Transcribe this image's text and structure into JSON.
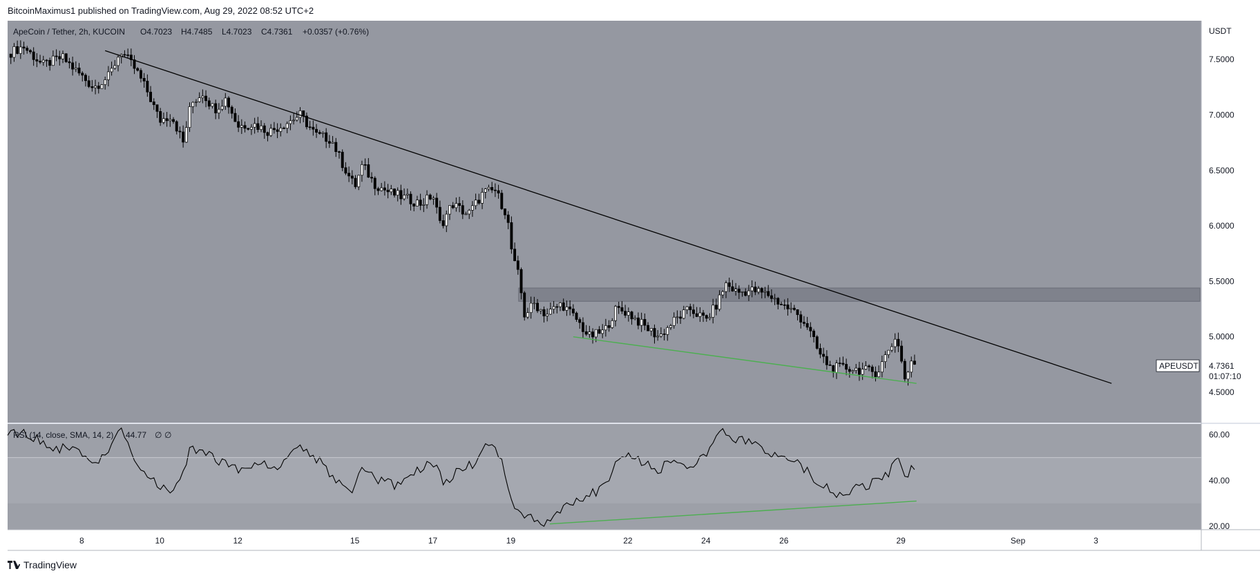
{
  "header": {
    "published": "BitcoinMaximus1 published on TradingView.com, Aug 29, 2022 08:52 UTC+2"
  },
  "footer": {
    "brand": "TradingView"
  },
  "colors": {
    "plot_bg": "#9598a1",
    "rsi_bg": "#9da0a8",
    "rsi_band": "#a5a8b0",
    "candle_up": "#ffffff",
    "candle_down": "#000000",
    "trendline": "#000000",
    "support_line": "#4caf50",
    "resistance_zone": "#787b86"
  },
  "chart_data": [
    {
      "type": "candlestick",
      "legend": {
        "symbol": "ApeCoin / Tether, 2h, KUCOIN",
        "open": "O4.7023",
        "high": "H4.7485",
        "low": "L4.7023",
        "close": "C4.7361",
        "change": "+0.0357 (+0.76%)"
      },
      "y_unit": "USDT",
      "y_ticks": [
        "7.5000",
        "7.0000",
        "6.5000",
        "6.0000",
        "5.5000",
        "5.0000",
        "4.5000"
      ],
      "ylim": [
        4.22,
        7.85
      ],
      "x_ticks": [
        "8",
        "10",
        "12",
        "15",
        "17",
        "19",
        "22",
        "24",
        "26",
        "29",
        "Sep",
        "3"
      ],
      "x_tick_days": [
        8,
        10,
        12,
        15,
        17,
        19,
        22,
        24,
        26,
        29,
        32,
        34
      ],
      "x_range_days": [
        6.1,
        36.7
      ],
      "last_price_label": {
        "symbol": "APEUSDT",
        "price": "4.7361",
        "countdown": "01:07:10"
      },
      "price_path": [
        [
          6.1,
          7.55
        ],
        [
          6.5,
          7.62
        ],
        [
          7.0,
          7.45
        ],
        [
          7.5,
          7.52
        ],
        [
          8.0,
          7.35
        ],
        [
          8.3,
          7.25
        ],
        [
          8.7,
          7.35
        ],
        [
          9.0,
          7.58
        ],
        [
          9.4,
          7.4
        ],
        [
          9.7,
          7.2
        ],
        [
          10.0,
          6.95
        ],
        [
          10.3,
          7.0
        ],
        [
          10.6,
          6.75
        ],
        [
          10.8,
          7.1
        ],
        [
          11.1,
          7.2
        ],
        [
          11.4,
          7.05
        ],
        [
          11.7,
          7.15
        ],
        [
          12.0,
          6.9
        ],
        [
          12.4,
          6.92
        ],
        [
          12.8,
          6.85
        ],
        [
          13.2,
          6.92
        ],
        [
          13.6,
          7.0
        ],
        [
          14.0,
          6.82
        ],
        [
          14.4,
          6.78
        ],
        [
          14.7,
          6.55
        ],
        [
          15.0,
          6.35
        ],
        [
          15.2,
          6.55
        ],
        [
          15.5,
          6.38
        ],
        [
          15.9,
          6.3
        ],
        [
          16.3,
          6.25
        ],
        [
          16.7,
          6.2
        ],
        [
          17.0,
          6.28
        ],
        [
          17.2,
          6.0
        ],
        [
          17.5,
          6.2
        ],
        [
          17.9,
          6.1
        ],
        [
          18.3,
          6.3
        ],
        [
          18.6,
          6.32
        ],
        [
          18.9,
          6.1
        ],
        [
          19.05,
          5.7
        ],
        [
          19.2,
          5.55
        ],
        [
          19.35,
          5.2
        ],
        [
          19.6,
          5.3
        ],
        [
          19.9,
          5.2
        ],
        [
          20.3,
          5.3
        ],
        [
          20.7,
          5.15
        ],
        [
          21.0,
          5.0
        ],
        [
          21.4,
          5.05
        ],
        [
          21.7,
          5.25
        ],
        [
          22.0,
          5.22
        ],
        [
          22.4,
          5.1
        ],
        [
          22.8,
          5.0
        ],
        [
          23.2,
          5.15
        ],
        [
          23.6,
          5.25
        ],
        [
          24.0,
          5.15
        ],
        [
          24.3,
          5.3
        ],
        [
          24.5,
          5.48
        ],
        [
          24.8,
          5.4
        ],
        [
          25.2,
          5.42
        ],
        [
          25.6,
          5.38
        ],
        [
          26.0,
          5.28
        ],
        [
          26.3,
          5.22
        ],
        [
          26.6,
          5.1
        ],
        [
          26.9,
          4.85
        ],
        [
          27.2,
          4.72
        ],
        [
          27.6,
          4.72
        ],
        [
          28.0,
          4.7
        ],
        [
          28.4,
          4.68
        ],
        [
          28.7,
          4.9
        ],
        [
          28.9,
          5.0
        ],
        [
          29.1,
          4.62
        ],
        [
          29.3,
          4.78
        ],
        [
          29.4,
          4.7361
        ]
      ],
      "trendline": {
        "from": [
          8.6,
          7.58
        ],
        "to": [
          34.4,
          4.58
        ]
      },
      "support_line": {
        "from": [
          20.6,
          5.0
        ],
        "to": [
          29.4,
          4.58
        ]
      },
      "resistance_zone": [
        5.32,
        5.44
      ],
      "resistance_zone_days": [
        19.2,
        36.7
      ]
    },
    {
      "type": "line",
      "legend": {
        "label": "RSI (14, close, SMA, 14, 2)",
        "value": "44.77",
        "extra1": "∅",
        "extra2": "∅"
      },
      "y_ticks": [
        "60.00",
        "40.00",
        "20.00"
      ],
      "ylim": [
        18.5,
        65
      ],
      "band": [
        30,
        50
      ],
      "rsi_path": [
        [
          6.1,
          62
        ],
        [
          6.6,
          60
        ],
        [
          7.2,
          55
        ],
        [
          7.8,
          53
        ],
        [
          8.3,
          47
        ],
        [
          8.7,
          53
        ],
        [
          9.0,
          62
        ],
        [
          9.3,
          50
        ],
        [
          9.7,
          42
        ],
        [
          10.0,
          37
        ],
        [
          10.4,
          35
        ],
        [
          10.8,
          55
        ],
        [
          11.2,
          52
        ],
        [
          11.6,
          48
        ],
        [
          12.0,
          44
        ],
        [
          12.5,
          48
        ],
        [
          13.0,
          45
        ],
        [
          13.5,
          55
        ],
        [
          14.0,
          50
        ],
        [
          14.5,
          40
        ],
        [
          14.9,
          33
        ],
        [
          15.2,
          45
        ],
        [
          15.6,
          40
        ],
        [
          16.0,
          38
        ],
        [
          16.5,
          43
        ],
        [
          17.0,
          48
        ],
        [
          17.3,
          38
        ],
        [
          17.7,
          45
        ],
        [
          18.1,
          48
        ],
        [
          18.5,
          58
        ],
        [
          18.8,
          48
        ],
        [
          19.0,
          32
        ],
        [
          19.3,
          25
        ],
        [
          19.7,
          22
        ],
        [
          20.0,
          22
        ],
        [
          20.5,
          30
        ],
        [
          21.0,
          34
        ],
        [
          21.4,
          37
        ],
        [
          21.6,
          45
        ],
        [
          22.0,
          52
        ],
        [
          22.4,
          48
        ],
        [
          22.8,
          45
        ],
        [
          23.2,
          50
        ],
        [
          23.6,
          46
        ],
        [
          24.0,
          50
        ],
        [
          24.4,
          63
        ],
        [
          24.8,
          58
        ],
        [
          25.3,
          55
        ],
        [
          25.7,
          50
        ],
        [
          26.0,
          52
        ],
        [
          26.4,
          48
        ],
        [
          26.7,
          42
        ],
        [
          27.0,
          38
        ],
        [
          27.3,
          33
        ],
        [
          27.7,
          36
        ],
        [
          28.1,
          37
        ],
        [
          28.4,
          40
        ],
        [
          28.7,
          44
        ],
        [
          28.9,
          52
        ],
        [
          29.1,
          40
        ],
        [
          29.3,
          46
        ],
        [
          29.4,
          44.77
        ]
      ],
      "rsi_support_line": {
        "from": [
          20.0,
          21.0
        ],
        "to": [
          29.4,
          31.0
        ]
      }
    }
  ]
}
